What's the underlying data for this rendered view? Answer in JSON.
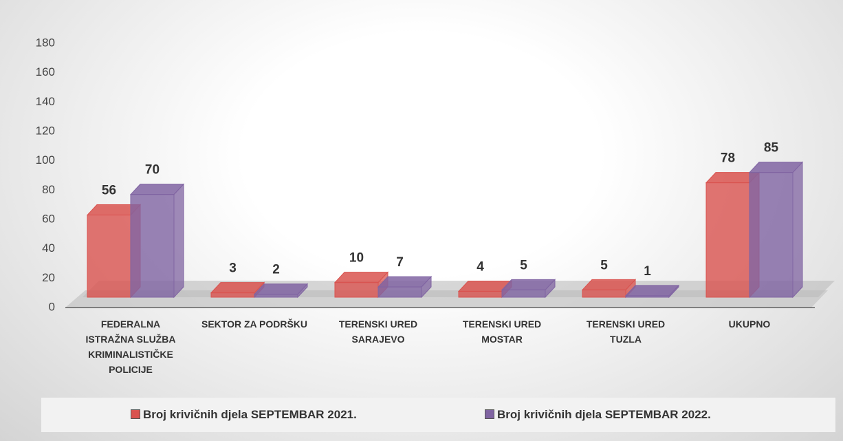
{
  "chart_data": {
    "type": "bar3d",
    "categories": [
      "FEDERALNA ISTRAŽNA SLUŽBA KRIMINALISTIČKE POLICIJE",
      "SEKTOR ZA PODRŠKU",
      "TERENSKI URED SARAJEVO",
      "TERENSKI URED MOSTAR",
      "TERENSKI URED TUZLA",
      "UKUPNO"
    ],
    "series": [
      {
        "name": "Broj krivičnih djela SEPTEMBAR 2021.",
        "color": "#d9534f",
        "values": [
          56,
          3,
          10,
          4,
          5,
          78
        ]
      },
      {
        "name": "Broj krivičnih djela SEPTEMBAR  2022.",
        "color": "#8064a2",
        "values": [
          70,
          2,
          7,
          5,
          1,
          85
        ]
      }
    ],
    "ylim": [
      0,
      180
    ],
    "yticks": [
      0,
      20,
      40,
      60,
      80,
      100,
      120,
      140,
      160,
      180
    ],
    "legend": "bottom"
  }
}
